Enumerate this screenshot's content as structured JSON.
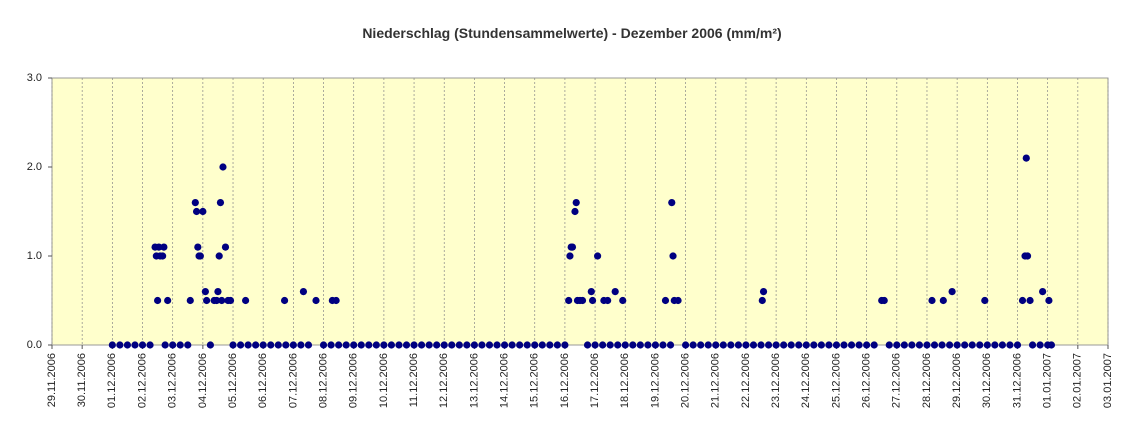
{
  "chart_data": {
    "type": "scatter",
    "title": "Niederschlag (Stundensammelwerte) - Dezember 2006 (mm/m²)",
    "color": "#000080",
    "background": "#ffffcc",
    "grid": true,
    "xlim": [
      "2006-11-29T00:00",
      "2007-01-03T00:00"
    ],
    "ylim": [
      0,
      3
    ],
    "yticks": [
      {
        "value": 0,
        "label": "0.0"
      },
      {
        "value": 1,
        "label": "1.0"
      },
      {
        "value": 2,
        "label": "2.0"
      },
      {
        "value": 3,
        "label": "3.0"
      }
    ],
    "xticks": [
      {
        "value": "2006-11-29T00:00",
        "label": "29.11.2006"
      },
      {
        "value": "2006-11-30T00:00",
        "label": "30.11.2006"
      },
      {
        "value": "2006-12-01T00:00",
        "label": "01.12.2006"
      },
      {
        "value": "2006-12-02T00:00",
        "label": "02.12.2006"
      },
      {
        "value": "2006-12-03T00:00",
        "label": "03.12.2006"
      },
      {
        "value": "2006-12-04T00:00",
        "label": "04.12.2006"
      },
      {
        "value": "2006-12-05T00:00",
        "label": "05.12.2006"
      },
      {
        "value": "2006-12-06T00:00",
        "label": "06.12.2006"
      },
      {
        "value": "2006-12-07T00:00",
        "label": "07.12.2006"
      },
      {
        "value": "2006-12-08T00:00",
        "label": "08.12.2006"
      },
      {
        "value": "2006-12-09T00:00",
        "label": "09.12.2006"
      },
      {
        "value": "2006-12-10T00:00",
        "label": "10.12.2006"
      },
      {
        "value": "2006-12-11T00:00",
        "label": "11.12.2006"
      },
      {
        "value": "2006-12-12T00:00",
        "label": "12.12.2006"
      },
      {
        "value": "2006-12-13T00:00",
        "label": "13.12.2006"
      },
      {
        "value": "2006-12-14T00:00",
        "label": "14.12.2006"
      },
      {
        "value": "2006-12-15T00:00",
        "label": "15.12.2006"
      },
      {
        "value": "2006-12-16T00:00",
        "label": "16.12.2006"
      },
      {
        "value": "2006-12-17T00:00",
        "label": "17.12.2006"
      },
      {
        "value": "2006-12-18T00:00",
        "label": "18.12.2006"
      },
      {
        "value": "2006-12-19T00:00",
        "label": "19.12.2006"
      },
      {
        "value": "2006-12-20T00:00",
        "label": "20.12.2006"
      },
      {
        "value": "2006-12-21T00:00",
        "label": "21.12.2006"
      },
      {
        "value": "2006-12-22T00:00",
        "label": "22.12.2006"
      },
      {
        "value": "2006-12-23T00:00",
        "label": "23.12.2006"
      },
      {
        "value": "2006-12-24T00:00",
        "label": "24.12.2006"
      },
      {
        "value": "2006-12-25T00:00",
        "label": "25.12.2006"
      },
      {
        "value": "2006-12-26T00:00",
        "label": "26.12.2006"
      },
      {
        "value": "2006-12-27T00:00",
        "label": "27.12.2006"
      },
      {
        "value": "2006-12-28T00:00",
        "label": "28.12.2006"
      },
      {
        "value": "2006-12-29T00:00",
        "label": "29.12.2006"
      },
      {
        "value": "2006-12-30T00:00",
        "label": "30.12.2006"
      },
      {
        "value": "2006-12-31T00:00",
        "label": "31.12.2006"
      },
      {
        "value": "2007-01-01T00:00",
        "label": "01.01.2007"
      },
      {
        "value": "2007-01-02T00:00",
        "label": "02.01.2007"
      },
      {
        "value": "2007-01-03T00:00",
        "label": "03.01.2007"
      }
    ],
    "x": [
      "2006-12-02T10:00",
      "2006-12-02T11:00",
      "2006-12-02T12:00",
      "2006-12-02T13:00",
      "2006-12-02T14:00",
      "2006-12-02T16:00",
      "2006-12-02T17:00",
      "2006-12-02T20:00",
      "2006-12-03T14:00",
      "2006-12-03T18:00",
      "2006-12-03T19:00",
      "2006-12-03T20:00",
      "2006-12-03T21:00",
      "2006-12-03T22:00",
      "2006-12-04T00:00",
      "2006-12-04T02:00",
      "2006-12-04T03:00",
      "2006-12-04T09:00",
      "2006-12-04T11:00",
      "2006-12-04T12:00",
      "2006-12-04T13:00",
      "2006-12-04T14:00",
      "2006-12-04T15:00",
      "2006-12-04T16:00",
      "2006-12-04T18:00",
      "2006-12-04T20:00",
      "2006-12-04T22:00",
      "2006-12-05T10:00",
      "2006-12-06T17:00",
      "2006-12-07T08:00",
      "2006-12-07T18:00",
      "2006-12-08T07:00",
      "2006-12-08T10:00",
      "2006-12-16T03:00",
      "2006-12-16T04:00",
      "2006-12-16T05:00",
      "2006-12-16T06:00",
      "2006-12-16T08:00",
      "2006-12-16T09:00",
      "2006-12-16T10:00",
      "2006-12-16T12:00",
      "2006-12-16T14:00",
      "2006-12-16T21:00",
      "2006-12-16T22:00",
      "2006-12-17T02:00",
      "2006-12-17T07:00",
      "2006-12-17T10:00",
      "2006-12-17T16:00",
      "2006-12-17T22:00",
      "2006-12-19T08:00",
      "2006-12-19T13:00",
      "2006-12-19T14:00",
      "2006-12-19T15:00",
      "2006-12-19T18:00",
      "2006-12-22T13:00",
      "2006-12-22T14:00",
      "2006-12-26T12:00",
      "2006-12-26T14:00",
      "2006-12-28T04:00",
      "2006-12-28T13:00",
      "2006-12-28T20:00",
      "2006-12-29T22:00",
      "2006-12-31T04:00",
      "2006-12-31T06:00",
      "2006-12-31T07:00",
      "2006-12-31T08:00",
      "2006-12-31T10:00",
      "2006-12-31T20:00",
      "2007-01-01T01:00",
      "2006-12-01T00:00",
      "2006-12-01T06:00",
      "2006-12-01T12:00",
      "2006-12-01T18:00",
      "2006-12-02T00:00",
      "2006-12-02T06:00",
      "2006-12-02T18:00",
      "2006-12-03T00:00",
      "2006-12-03T06:00",
      "2006-12-03T12:00",
      "2006-12-04T06:00",
      "2006-12-05T00:00",
      "2006-12-05T06:00",
      "2006-12-05T12:00",
      "2006-12-05T18:00",
      "2006-12-06T00:00",
      "2006-12-06T06:00",
      "2006-12-06T12:00",
      "2006-12-06T18:00",
      "2006-12-07T00:00",
      "2006-12-07T06:00",
      "2006-12-07T12:00",
      "2006-12-08T00:00",
      "2006-12-08T06:00",
      "2006-12-08T12:00",
      "2006-12-08T18:00",
      "2006-12-09T00:00",
      "2006-12-09T06:00",
      "2006-12-09T12:00",
      "2006-12-09T18:00",
      "2006-12-10T00:00",
      "2006-12-10T06:00",
      "2006-12-10T12:00",
      "2006-12-10T18:00",
      "2006-12-11T00:00",
      "2006-12-11T06:00",
      "2006-12-11T12:00",
      "2006-12-11T18:00",
      "2006-12-12T00:00",
      "2006-12-12T06:00",
      "2006-12-12T12:00",
      "2006-12-12T18:00",
      "2006-12-13T00:00",
      "2006-12-13T06:00",
      "2006-12-13T12:00",
      "2006-12-13T18:00",
      "2006-12-14T00:00",
      "2006-12-14T06:00",
      "2006-12-14T12:00",
      "2006-12-14T18:00",
      "2006-12-15T00:00",
      "2006-12-15T06:00",
      "2006-12-15T12:00",
      "2006-12-15T18:00",
      "2006-12-16T00:00",
      "2006-12-16T18:00",
      "2006-12-17T00:00",
      "2006-12-17T06:00",
      "2006-12-17T12:00",
      "2006-12-17T18:00",
      "2006-12-18T00:00",
      "2006-12-18T06:00",
      "2006-12-18T12:00",
      "2006-12-18T18:00",
      "2006-12-19T00:00",
      "2006-12-19T06:00",
      "2006-12-19T12:00",
      "2006-12-20T00:00",
      "2006-12-20T06:00",
      "2006-12-20T12:00",
      "2006-12-20T18:00",
      "2006-12-21T00:00",
      "2006-12-21T06:00",
      "2006-12-21T12:00",
      "2006-12-21T18:00",
      "2006-12-22T00:00",
      "2006-12-22T06:00",
      "2006-12-22T12:00",
      "2006-12-22T18:00",
      "2006-12-23T00:00",
      "2006-12-23T06:00",
      "2006-12-23T12:00",
      "2006-12-23T18:00",
      "2006-12-24T00:00",
      "2006-12-24T06:00",
      "2006-12-24T12:00",
      "2006-12-24T18:00",
      "2006-12-25T00:00",
      "2006-12-25T06:00",
      "2006-12-25T12:00",
      "2006-12-25T18:00",
      "2006-12-26T00:00",
      "2006-12-26T06:00",
      "2006-12-26T18:00",
      "2006-12-27T00:00",
      "2006-12-27T06:00",
      "2006-12-27T12:00",
      "2006-12-27T18:00",
      "2006-12-28T00:00",
      "2006-12-28T06:00",
      "2006-12-28T12:00",
      "2006-12-28T18:00",
      "2006-12-29T00:00",
      "2006-12-29T06:00",
      "2006-12-29T12:00",
      "2006-12-29T18:00",
      "2006-12-30T00:00",
      "2006-12-30T06:00",
      "2006-12-30T12:00",
      "2006-12-30T18:00",
      "2006-12-31T00:00",
      "2006-12-31T12:00",
      "2006-12-31T18:00",
      "2007-01-01T00:00",
      "2007-01-01T03:00"
    ],
    "values": [
      1.1,
      1.0,
      0.5,
      1.1,
      1.0,
      1.0,
      1.1,
      0.5,
      0.5,
      1.6,
      1.5,
      1.1,
      1.0,
      1.0,
      1.5,
      0.6,
      0.5,
      0.5,
      0.5,
      0.6,
      1.0,
      1.6,
      0.5,
      2.0,
      1.1,
      0.5,
      0.5,
      0.5,
      0.5,
      0.6,
      0.5,
      0.5,
      0.5,
      0.5,
      1.0,
      1.1,
      1.1,
      1.5,
      1.6,
      0.5,
      0.5,
      0.5,
      0.6,
      0.5,
      1.0,
      0.5,
      0.5,
      0.6,
      0.5,
      0.5,
      1.6,
      1.0,
      0.5,
      0.5,
      0.5,
      0.6,
      0.5,
      0.5,
      0.5,
      0.5,
      0.6,
      0.5,
      0.5,
      1.0,
      2.1,
      1.0,
      0.5,
      0.6,
      0.5,
      0,
      0,
      0,
      0,
      0,
      0,
      0,
      0,
      0,
      0,
      0,
      0,
      0,
      0,
      0,
      0,
      0,
      0,
      0,
      0,
      0,
      0,
      0,
      0,
      0,
      0,
      0,
      0,
      0,
      0,
      0,
      0,
      0,
      0,
      0,
      0,
      0,
      0,
      0,
      0,
      0,
      0,
      0,
      0,
      0,
      0,
      0,
      0,
      0,
      0,
      0,
      0,
      0,
      0,
      0,
      0,
      0,
      0,
      0,
      0,
      0,
      0,
      0,
      0,
      0,
      0,
      0,
      0,
      0,
      0,
      0,
      0,
      0,
      0,
      0,
      0,
      0,
      0,
      0,
      0,
      0,
      0,
      0,
      0,
      0,
      0,
      0,
      0,
      0,
      0,
      0,
      0,
      0,
      0,
      0,
      0,
      0,
      0,
      0,
      0,
      0,
      0,
      0,
      0,
      0,
      0,
      0,
      0,
      0,
      0,
      0,
      0,
      0,
      0,
      0
    ]
  }
}
